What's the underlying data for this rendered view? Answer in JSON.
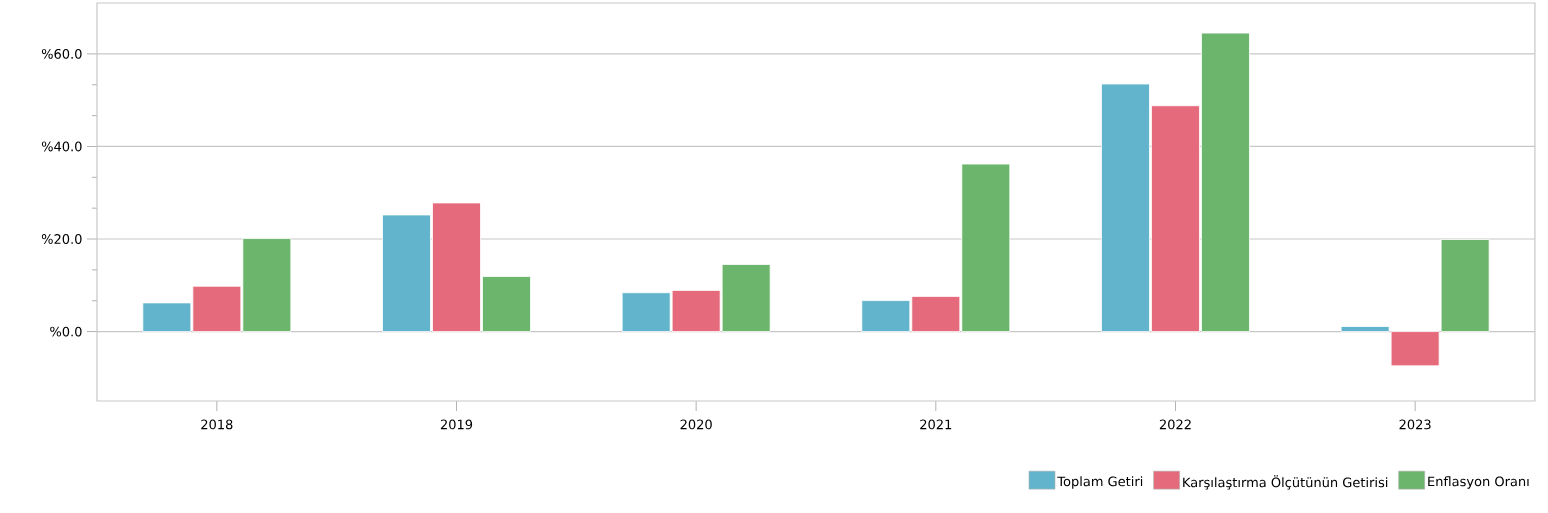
{
  "chart_data": {
    "type": "bar",
    "categories": [
      "2018",
      "2019",
      "2020",
      "2021",
      "2022",
      "2023"
    ],
    "series": [
      {
        "name": "Toplam Getiri",
        "color": "#62b4cc",
        "values": [
          6.2,
          25.2,
          8.4,
          6.7,
          53.5,
          1.1
        ]
      },
      {
        "name": "Karşılaştırma Ölçütünün Getirisi",
        "color": "#e56b7c",
        "values": [
          9.8,
          27.8,
          8.9,
          7.6,
          48.8,
          -7.4
        ]
      },
      {
        "name": "Enflasyon Oranı",
        "color": "#6cb56c",
        "values": [
          20.1,
          11.9,
          14.5,
          36.2,
          64.5,
          19.9
        ]
      }
    ],
    "ylim": [
      -15,
      71
    ],
    "yticks": [
      {
        "value": 0,
        "label": "%0.0"
      },
      {
        "value": 20,
        "label": "%20.0"
      },
      {
        "value": 40,
        "label": "%40.0"
      },
      {
        "value": 60,
        "label": "%60.0"
      }
    ],
    "grid": "y",
    "legend": "bottom right"
  }
}
